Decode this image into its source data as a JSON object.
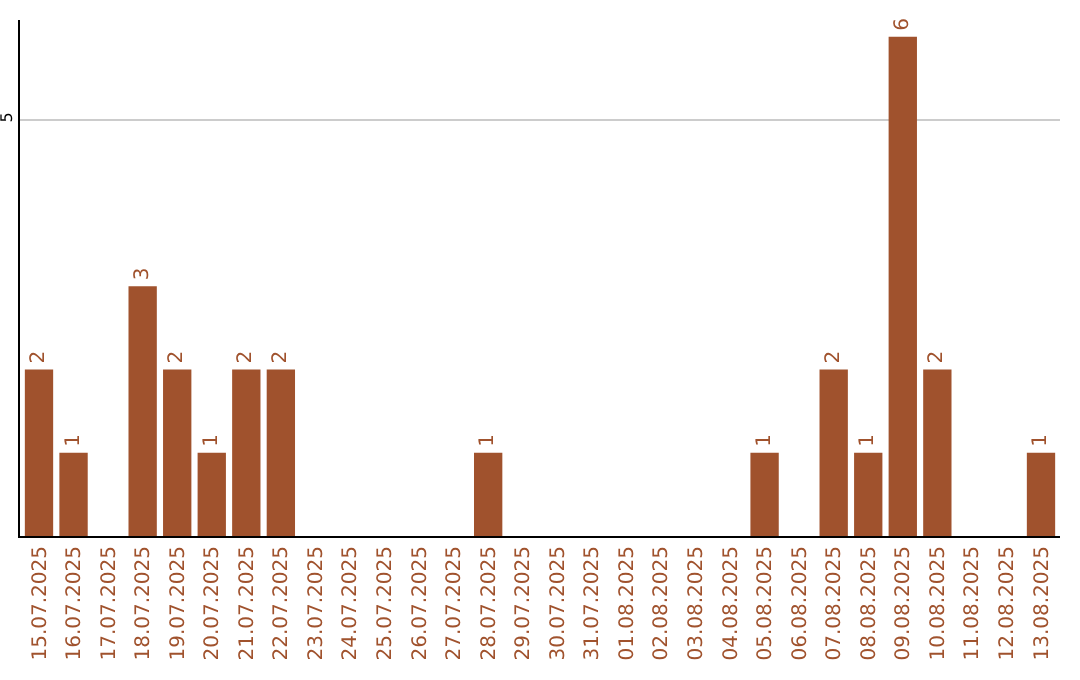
{
  "chart_data": {
    "type": "bar",
    "categories": [
      "15.07.2025",
      "16.07.2025",
      "17.07.2025",
      "18.07.2025",
      "19.07.2025",
      "20.07.2025",
      "21.07.2025",
      "22.07.2025",
      "23.07.2025",
      "24.07.2025",
      "25.07.2025",
      "26.07.2025",
      "27.07.2025",
      "28.07.2025",
      "29.07.2025",
      "30.07.2025",
      "31.07.2025",
      "01.08.2025",
      "02.08.2025",
      "03.08.2025",
      "04.08.2025",
      "05.08.2025",
      "06.08.2025",
      "07.08.2025",
      "08.08.2025",
      "09.08.2025",
      "10.08.2025",
      "11.08.2025",
      "12.08.2025",
      "13.08.2025"
    ],
    "values": [
      2,
      1,
      0,
      3,
      2,
      1,
      2,
      2,
      0,
      0,
      0,
      0,
      0,
      1,
      0,
      0,
      0,
      0,
      0,
      0,
      0,
      1,
      0,
      2,
      1,
      6,
      2,
      0,
      0,
      1
    ],
    "value_labels": [
      "2",
      "1",
      null,
      "3",
      "2",
      "1",
      "2",
      "2",
      null,
      null,
      null,
      null,
      null,
      "1",
      null,
      null,
      null,
      null,
      null,
      null,
      null,
      "1",
      null,
      "2",
      "1",
      "6",
      "2",
      null,
      null,
      "1"
    ],
    "color": "#a0522d",
    "ylim": [
      0,
      6.2
    ],
    "yticks": [
      5
    ],
    "grid": "y"
  }
}
